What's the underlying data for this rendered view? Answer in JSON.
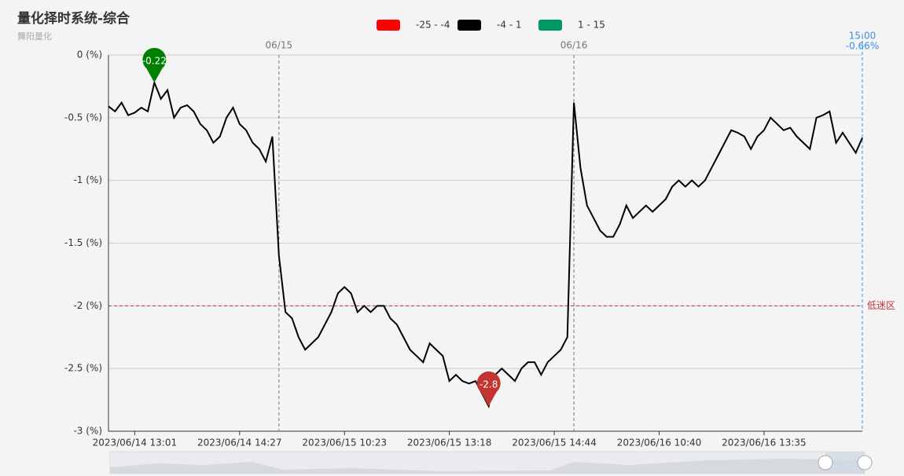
{
  "chart_data": {
    "type": "line",
    "title": "量化择时系统-综合",
    "subtitle": "舞阳量化",
    "visual_map": [
      {
        "label": "-25 - -4",
        "min": -25,
        "max": -4,
        "color": "#ff0000"
      },
      {
        "label": "-4 - 1",
        "min": -4,
        "max": 1,
        "color": "#000000"
      },
      {
        "label": "1 - 15",
        "min": 1,
        "max": 15,
        "color": "#009966"
      }
    ],
    "categories": [
      null,
      null,
      null,
      null,
      "2023/06/14 13:01",
      null,
      null,
      null,
      null,
      null,
      null,
      null,
      null,
      null,
      null,
      null,
      null,
      null,
      null,
      null,
      "2023/06/14 14:27",
      null,
      null,
      null,
      null,
      null,
      null,
      null,
      null,
      null,
      null,
      null,
      null,
      null,
      null,
      null,
      "2023/06/15 10:23",
      null,
      null,
      null,
      null,
      null,
      null,
      null,
      null,
      null,
      null,
      null,
      null,
      null,
      null,
      null,
      "2023/06/15 13:18",
      null,
      null,
      null,
      null,
      null,
      null,
      null,
      null,
      null,
      null,
      null,
      null,
      null,
      null,
      null,
      "2023/06/15 14:44",
      null,
      null,
      null,
      null,
      null,
      null,
      null,
      null,
      null,
      null,
      null,
      null,
      null,
      null,
      null,
      "2023/06/16 10:40",
      null,
      null,
      null,
      null,
      null,
      null,
      null,
      null,
      null,
      null,
      null,
      null,
      null,
      null,
      null,
      "2023/06/16 13:35",
      null,
      null,
      null,
      null,
      null,
      null,
      null,
      null,
      null,
      null,
      null,
      null,
      null,
      null,
      null
    ],
    "series": [
      {
        "values": [
          -0.41,
          -0.45,
          -0.38,
          -0.48,
          -0.46,
          -0.42,
          -0.45,
          -0.22,
          -0.35,
          -0.28,
          -0.5,
          -0.42,
          -0.4,
          -0.45,
          -0.55,
          -0.6,
          -0.7,
          -0.65,
          -0.5,
          -0.42,
          -0.55,
          -0.6,
          -0.7,
          -0.75,
          -0.85,
          -0.65,
          -1.6,
          -2.05,
          -2.1,
          -2.25,
          -2.35,
          -2.3,
          -2.25,
          -2.15,
          -2.05,
          -1.9,
          -1.85,
          -1.9,
          -2.05,
          -2.0,
          -2.05,
          -2.0,
          -2.0,
          -2.1,
          -2.15,
          -2.25,
          -2.35,
          -2.4,
          -2.45,
          -2.3,
          -2.35,
          -2.4,
          -2.6,
          -2.55,
          -2.6,
          -2.62,
          -2.6,
          -2.7,
          -2.8,
          -2.55,
          -2.5,
          -2.55,
          -2.6,
          -2.5,
          -2.45,
          -2.45,
          -2.55,
          -2.45,
          -2.4,
          -2.35,
          -2.25,
          -0.38,
          -0.9,
          -1.2,
          -1.3,
          -1.4,
          -1.45,
          -1.45,
          -1.35,
          -1.2,
          -1.3,
          -1.25,
          -1.2,
          -1.25,
          -1.2,
          -1.15,
          -1.05,
          -1.0,
          -1.05,
          -1.0,
          -1.05,
          -1.0,
          -0.9,
          -0.8,
          -0.7,
          -0.6,
          -0.62,
          -0.65,
          -0.75,
          -0.65,
          -0.6,
          -0.5,
          -0.55,
          -0.6,
          -0.58,
          -0.65,
          -0.7,
          -0.75,
          -0.5,
          -0.48,
          -0.45,
          -0.7,
          -0.62,
          -0.7,
          -0.78,
          -0.66
        ],
        "end_label": "-0.66%"
      }
    ],
    "mark_points": [
      {
        "type": "max",
        "color": "#008000"
      },
      {
        "type": "min",
        "color": "#c23531"
      }
    ],
    "day_lines": [
      {
        "label": "06/15",
        "x_index": 26
      },
      {
        "label": "06/16",
        "x_index": 71
      }
    ],
    "end_line": {
      "label": "15:00",
      "color": "#3a8ee6"
    },
    "low_line": {
      "value": -2,
      "label": "低迷区",
      "color": "#c23531"
    },
    "ylim": [
      -3,
      0
    ],
    "yticks": [
      {
        "value": -3,
        "label": "-3 (%)"
      },
      {
        "value": -2.5,
        "label": "-2.5 (%)"
      },
      {
        "value": -2,
        "label": "-2 (%)"
      },
      {
        "value": -1.5,
        "label": "-1.5 (%)"
      },
      {
        "value": -1,
        "label": "-1 (%)"
      },
      {
        "value": -0.5,
        "label": "-0.5 (%)"
      },
      {
        "value": 0,
        "label": "0 (%)"
      }
    ],
    "grid": true
  }
}
